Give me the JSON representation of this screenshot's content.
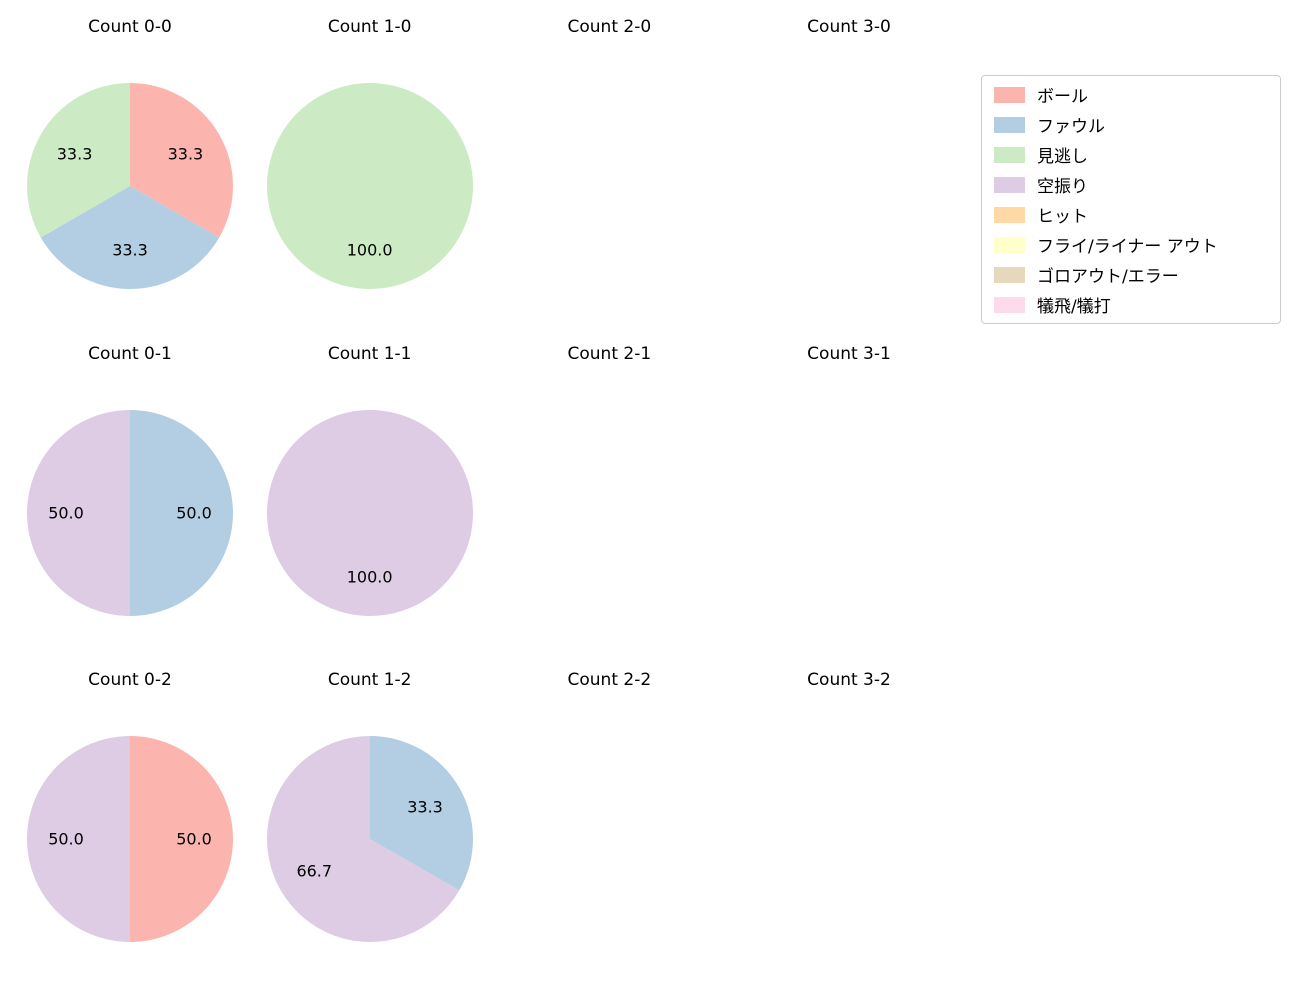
{
  "figure": {
    "background": "#ffffff"
  },
  "legend": {
    "items": [
      {
        "label": "ボール",
        "color": "#fbb4ae"
      },
      {
        "label": "ファウル",
        "color": "#b3cde3"
      },
      {
        "label": "見逃し",
        "color": "#ccebc5"
      },
      {
        "label": "空振り",
        "color": "#decbe4"
      },
      {
        "label": "ヒット",
        "color": "#fed9a6"
      },
      {
        "label": "フライ/ライナー アウト",
        "color": "#ffffcc"
      },
      {
        "label": "ゴロアウト/エラー",
        "color": "#e5d8bd"
      },
      {
        "label": "犠飛/犠打",
        "color": "#fddaec"
      }
    ]
  },
  "chart_data": [
    {
      "type": "pie",
      "title": "Count 0-0",
      "start_angle_deg_clockwise_from_top": 0,
      "slices": [
        {
          "label": "ボール",
          "value": 33.3,
          "text": "33.3",
          "color": "#fbb4ae"
        },
        {
          "label": "ファウル",
          "value": 33.3,
          "text": "33.3",
          "color": "#b3cde3"
        },
        {
          "label": "見逃し",
          "value": 33.3,
          "text": "33.3",
          "color": "#ccebc5"
        }
      ]
    },
    {
      "type": "pie",
      "title": "Count 1-0",
      "slices": [
        {
          "label": "見逃し",
          "value": 100.0,
          "text": "100.0",
          "color": "#ccebc5"
        }
      ]
    },
    {
      "type": "pie",
      "title": "Count 2-0",
      "slices": []
    },
    {
      "type": "pie",
      "title": "Count 3-0",
      "slices": []
    },
    {
      "type": "pie",
      "title": "Count 0-1",
      "slices": [
        {
          "label": "ファウル",
          "value": 50.0,
          "text": "50.0",
          "color": "#b3cde3"
        },
        {
          "label": "空振り",
          "value": 50.0,
          "text": "50.0",
          "color": "#decbe4"
        }
      ]
    },
    {
      "type": "pie",
      "title": "Count 1-1",
      "slices": [
        {
          "label": "空振り",
          "value": 100.0,
          "text": "100.0",
          "color": "#decbe4"
        }
      ]
    },
    {
      "type": "pie",
      "title": "Count 2-1",
      "slices": []
    },
    {
      "type": "pie",
      "title": "Count 3-1",
      "slices": []
    },
    {
      "type": "pie",
      "title": "Count 0-2",
      "slices": [
        {
          "label": "ボール",
          "value": 50.0,
          "text": "50.0",
          "color": "#fbb4ae"
        },
        {
          "label": "空振り",
          "value": 50.0,
          "text": "50.0",
          "color": "#decbe4"
        }
      ]
    },
    {
      "type": "pie",
      "title": "Count 1-2",
      "slices": [
        {
          "label": "ファウル",
          "value": 33.3,
          "text": "33.3",
          "color": "#b3cde3"
        },
        {
          "label": "空振り",
          "value": 66.7,
          "text": "66.7",
          "color": "#decbe4"
        }
      ]
    },
    {
      "type": "pie",
      "title": "Count 2-2",
      "slices": []
    },
    {
      "type": "pie",
      "title": "Count 3-2",
      "slices": []
    }
  ]
}
